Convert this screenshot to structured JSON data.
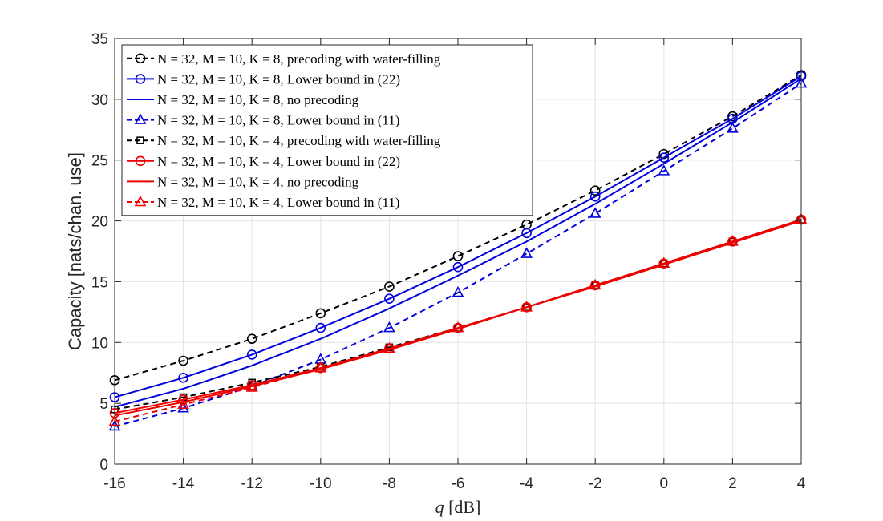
{
  "chart_data": {
    "type": "line",
    "xlabel": "q [dB]",
    "ylabel": "Capacity [nats/chan. use]",
    "xlim": [
      -16,
      4
    ],
    "ylim": [
      0,
      35
    ],
    "xticks": [
      -16,
      -14,
      -12,
      -10,
      -8,
      -6,
      -4,
      -2,
      0,
      2,
      4
    ],
    "yticks": [
      0,
      5,
      10,
      15,
      20,
      25,
      30,
      35
    ],
    "grid": true,
    "legend_position": "top-left",
    "x": [
      -16,
      -14,
      -12,
      -10,
      -8,
      -6,
      -4,
      -2,
      0,
      2,
      4
    ],
    "series": [
      {
        "name": "N = 32, M = 10, K = 8, precoding with water-filling",
        "color": "#000000",
        "dash": true,
        "marker": "circle",
        "values": [
          6.9,
          8.5,
          10.3,
          12.4,
          14.6,
          17.1,
          19.7,
          22.5,
          25.5,
          28.6,
          32.0
        ]
      },
      {
        "name": "N = 32, M = 10, K = 8, Lower bound in (22)",
        "color": "#0000dd",
        "dash": false,
        "marker": "circle",
        "values": [
          5.5,
          7.1,
          9.0,
          11.2,
          13.6,
          16.2,
          19.0,
          22.0,
          25.2,
          28.4,
          31.9
        ]
      },
      {
        "name": "N = 32, M = 10, K = 8, no precoding",
        "color": "#0000dd",
        "dash": false,
        "marker": "none",
        "values": [
          4.7,
          6.2,
          8.1,
          10.3,
          12.8,
          15.5,
          18.3,
          21.4,
          24.7,
          28.1,
          31.7
        ]
      },
      {
        "name": "N = 32, M = 10, K = 8, Lower bound in (11)",
        "color": "#0000dd",
        "dash": true,
        "marker": "triangle",
        "values": [
          3.1,
          4.6,
          6.4,
          8.6,
          11.2,
          14.1,
          17.3,
          20.6,
          24.1,
          27.6,
          31.3
        ]
      },
      {
        "name": "N = 32, M = 10, K = 4, precoding with water-filling",
        "color": "#000000",
        "dash": true,
        "marker": "square",
        "values": [
          4.5,
          5.5,
          6.7,
          8.0,
          9.6,
          11.2,
          12.9,
          14.7,
          16.5,
          18.3,
          20.1
        ]
      },
      {
        "name": "N = 32, M = 10, K = 4, Lower bound in (22)",
        "color": "#ee0000",
        "dash": false,
        "marker": "circle",
        "values": [
          4.2,
          5.3,
          6.5,
          7.9,
          9.5,
          11.2,
          12.9,
          14.7,
          16.5,
          18.3,
          20.1
        ]
      },
      {
        "name": "N = 32, M = 10, K = 4, no precoding",
        "color": "#ee0000",
        "dash": false,
        "marker": "none",
        "values": [
          4.0,
          5.1,
          6.4,
          7.8,
          9.4,
          11.1,
          12.9,
          14.6,
          16.4,
          18.2,
          20.0
        ]
      },
      {
        "name": "N = 32, M = 10, K = 4, Lower bound in (11)",
        "color": "#ee0000",
        "dash": true,
        "marker": "triangle",
        "values": [
          3.5,
          4.9,
          6.3,
          7.9,
          9.5,
          11.2,
          12.9,
          14.7,
          16.5,
          18.3,
          20.1
        ]
      }
    ]
  }
}
